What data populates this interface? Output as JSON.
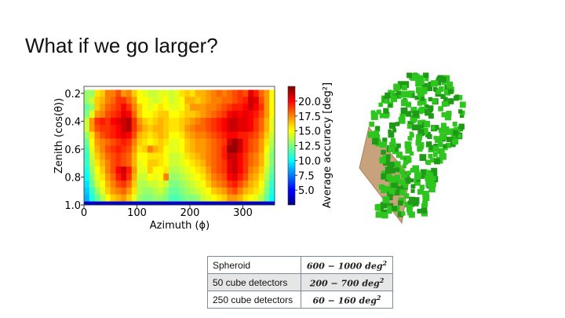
{
  "slide": {
    "title": "What if we go larger?"
  },
  "chart_data": {
    "type": "heatmap",
    "xlabel": "Azimuth (ϕ)",
    "ylabel": "Zenith (cos(θ))",
    "colorbar_label": "Average accuracy [deg²]",
    "x_ticks": [
      "0",
      "100",
      "200",
      "300"
    ],
    "y_ticks": [
      "0.2",
      "0.4",
      "0.6",
      "0.8",
      "1.0"
    ],
    "colorbar_ticks": [
      "20.0",
      "17.5",
      "15.0",
      "12.5",
      "10.0",
      "7.5",
      "5.0"
    ],
    "xlim": [
      0,
      360
    ],
    "ylim": [
      0.15,
      1.0
    ],
    "clim": [
      2.5,
      22.5
    ],
    "colormap": "jet",
    "n_cols": 36,
    "row_values": [
      0.2,
      0.25,
      0.3,
      0.35,
      0.4,
      0.45,
      0.5,
      0.55,
      0.6,
      0.65,
      0.7,
      0.75,
      0.8,
      0.85,
      0.9,
      0.95,
      1.0
    ],
    "col_values": [
      5,
      15,
      25,
      35,
      45,
      55,
      65,
      75,
      85,
      95,
      105,
      115,
      125,
      135,
      145,
      155,
      165,
      175,
      185,
      195,
      205,
      215,
      225,
      235,
      245,
      255,
      265,
      275,
      285,
      295,
      305,
      315,
      325,
      335,
      345,
      355
    ],
    "matrix": [
      [
        13,
        13,
        15.5,
        16,
        17.5,
        17.5,
        18.5,
        17,
        17.5,
        16,
        15,
        14.5,
        14,
        14,
        14.5,
        14.5,
        14,
        14.5,
        15.5,
        16,
        15.5,
        16.5,
        16.5,
        17,
        17.5,
        18,
        17.5,
        18,
        18.5,
        19,
        18.5,
        20.5,
        19.5,
        18,
        17,
        15
      ],
      [
        13,
        14,
        16,
        16.5,
        17.5,
        18,
        19,
        19,
        18,
        17,
        15,
        15,
        14.5,
        14,
        14.5,
        15,
        14,
        14.5,
        15,
        16.5,
        16.5,
        16,
        16.5,
        17,
        17.5,
        17.5,
        18,
        18,
        18.5,
        19,
        19.5,
        21,
        20.5,
        18.5,
        17,
        15
      ],
      [
        12,
        13,
        16,
        17,
        18,
        18.5,
        19,
        20,
        19,
        17.5,
        16,
        15,
        14.5,
        15,
        15.5,
        15,
        14.5,
        14.5,
        15,
        16,
        17,
        17,
        17,
        17.5,
        17.5,
        18,
        18.5,
        19,
        19.5,
        19.5,
        20,
        21,
        20,
        19,
        17,
        15
      ],
      [
        12.5,
        14.5,
        17,
        17.5,
        18.5,
        19,
        19.5,
        20.5,
        20,
        18,
        16,
        15,
        15,
        15.5,
        16,
        16,
        15,
        15,
        15.5,
        16,
        16,
        16.5,
        17,
        17.5,
        18,
        18.5,
        19,
        20,
        20.5,
        20,
        20.5,
        20,
        19.5,
        18.5,
        17,
        15
      ],
      [
        14,
        17,
        19,
        19.5,
        19,
        20,
        20.5,
        21,
        21.5,
        19,
        17,
        16,
        15.5,
        16,
        16.5,
        16,
        15.5,
        15.5,
        16,
        16.5,
        17,
        17.5,
        18,
        18.5,
        19,
        19.5,
        20,
        21,
        21,
        20.5,
        20.5,
        20,
        19,
        18,
        16.5,
        14.5
      ],
      [
        14,
        17,
        18.5,
        19,
        19,
        19.5,
        20,
        21,
        21.5,
        19,
        17.5,
        16.5,
        16,
        16.5,
        16.5,
        16,
        15.5,
        15.5,
        16,
        17,
        17.5,
        18,
        18,
        18.5,
        19,
        19.5,
        20,
        21,
        21,
        20.5,
        20.5,
        20,
        19,
        18,
        16.5,
        14.5
      ],
      [
        13,
        15.5,
        17.5,
        18.5,
        19,
        19.5,
        20,
        20.5,
        20,
        18.5,
        16.5,
        16,
        15.5,
        16,
        16.5,
        16,
        15,
        15,
        15.5,
        16.5,
        17,
        17.5,
        17.5,
        18,
        18.5,
        19,
        19.5,
        20,
        20,
        19.5,
        19.5,
        19,
        18.5,
        17.5,
        16,
        14
      ],
      [
        12,
        15,
        17,
        17.5,
        18,
        18.5,
        19,
        19.5,
        19,
        17.5,
        16,
        15.5,
        15,
        15.5,
        16,
        15.5,
        14.5,
        14.5,
        15,
        16,
        16.5,
        17,
        17,
        17.5,
        18,
        18.5,
        19,
        21,
        22,
        21,
        19.5,
        18.5,
        18,
        17,
        15.5,
        13.5
      ],
      [
        11.5,
        14.5,
        16.5,
        17.5,
        18.5,
        19,
        19.5,
        19,
        18.5,
        17,
        15.5,
        16,
        17.5,
        16.5,
        16,
        15,
        14.5,
        14.5,
        15,
        16,
        16.5,
        17,
        17,
        17.5,
        18,
        18.5,
        19.5,
        22,
        22,
        21,
        19.5,
        18.5,
        18,
        17,
        15,
        13
      ],
      [
        11,
        14,
        16,
        17,
        18,
        18.5,
        19,
        18.5,
        18,
        16.5,
        15,
        15,
        15.5,
        15.5,
        15.5,
        15,
        14,
        14,
        14.5,
        15.5,
        16,
        16.5,
        17,
        17.5,
        18,
        18.5,
        19.5,
        21,
        21,
        20,
        19,
        18,
        17.5,
        16.5,
        14.5,
        12.5
      ],
      [
        11,
        13.5,
        15.5,
        16.5,
        17.5,
        18.5,
        19,
        18.5,
        18,
        16.5,
        14.5,
        15,
        16,
        16,
        15.5,
        15,
        14,
        14,
        14.5,
        15,
        15.5,
        16,
        16.5,
        17.5,
        18,
        18.5,
        19,
        20.5,
        21,
        20,
        19,
        18,
        17.5,
        16.5,
        14.5,
        12.5
      ],
      [
        10.5,
        13,
        15,
        16,
        17.5,
        18.5,
        20,
        21,
        19.5,
        17,
        14.5,
        14.5,
        16,
        15,
        15,
        15.5,
        13.5,
        13.5,
        14,
        14.5,
        15,
        15.5,
        16,
        17,
        18,
        18.5,
        19,
        20.5,
        21,
        20,
        19,
        17.5,
        17,
        16,
        14,
        12
      ],
      [
        10,
        12.5,
        14.5,
        15.5,
        17,
        18,
        19.5,
        20.5,
        19,
        16.5,
        14,
        14,
        15,
        14.5,
        15,
        17.5,
        13,
        13,
        13.5,
        14,
        14.5,
        15,
        15.5,
        16.5,
        17.5,
        18,
        18.5,
        20,
        20.5,
        19.5,
        18.5,
        17,
        16.5,
        15.5,
        13.5,
        11.5
      ],
      [
        9.5,
        12,
        14,
        15,
        16.5,
        17.5,
        18.5,
        19,
        18,
        16,
        13.5,
        13.5,
        14,
        14,
        14.5,
        14,
        12.5,
        12.5,
        13,
        13.5,
        14,
        14.5,
        15,
        16,
        17,
        17.5,
        18,
        19,
        19.5,
        18.5,
        17.5,
        16.5,
        16,
        15,
        13,
        11
      ],
      [
        9,
        11,
        13,
        14.5,
        16,
        17,
        17.5,
        18,
        17,
        15.5,
        13.5,
        13,
        13,
        13.5,
        14,
        13,
        12,
        12,
        12.5,
        13,
        13.5,
        14,
        14.5,
        15,
        16,
        16.5,
        17,
        18,
        18.5,
        17.5,
        16.5,
        16,
        15.5,
        14.5,
        12.5,
        10.5
      ],
      [
        8.5,
        10.5,
        12,
        13.5,
        15,
        16,
        16.5,
        17,
        16,
        14.5,
        13,
        12.5,
        12.5,
        13,
        13,
        12.5,
        11.5,
        11.5,
        12,
        12.5,
        12.5,
        13,
        14,
        14.5,
        15,
        15.5,
        16,
        17,
        17,
        16.5,
        15.5,
        15,
        14.5,
        13.5,
        12,
        10
      ],
      [
        4,
        4,
        4,
        4,
        4,
        4,
        4,
        4,
        4,
        4,
        4,
        4,
        4,
        4,
        4,
        4,
        4,
        4,
        4,
        4,
        4,
        4,
        4,
        4,
        4,
        4,
        4,
        4,
        4,
        4,
        4,
        4,
        4,
        4,
        4,
        4
      ]
    ]
  },
  "detector_render": {
    "image_name": "detector-cube-cluster-render",
    "colors": {
      "cube": "#2ec51f",
      "cube_dark": "#1f9a16",
      "base": "#c8a27c"
    }
  },
  "config_table": {
    "rows": [
      {
        "name": "Spheroid",
        "value": "600 − 1000 deg",
        "exp": "2"
      },
      {
        "name": "50 cube detectors",
        "value": "200 − 700 deg",
        "exp": "2"
      },
      {
        "name": "250 cube detectors",
        "value": "60 − 160 deg",
        "exp": "2"
      }
    ]
  }
}
